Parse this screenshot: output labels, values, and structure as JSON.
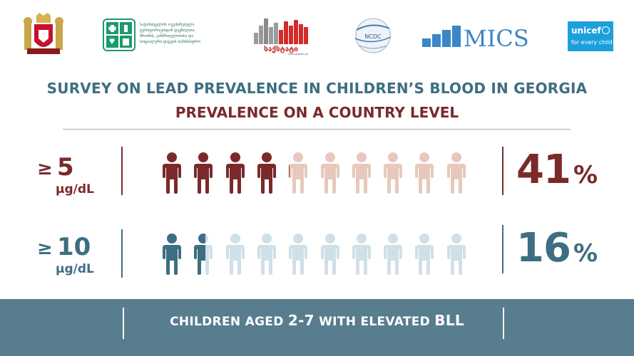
{
  "logos": {
    "ministry_text_lines": [
      "საქართველოს ოკუპირებული",
      "ტერიტორიებიდან დევნილთა,",
      "შრომის, ჯანმრთელობისა და",
      "სოციალური დაცვის სამინისტრო"
    ],
    "geostat_label": "საქსტატი",
    "geostat_url": "www.geostat.ge",
    "ncdc_label": "NCDC",
    "mics_label": "MICS",
    "unicef_label": "unicef",
    "unicef_tagline": "for every child"
  },
  "title": {
    "line1": "SURVEY ON LEAD PREVALENCE IN CHILDREN’S BLOOD IN GEORGIA",
    "line2": "PREVALENCE ON A COUNTRY LEVEL"
  },
  "rows": [
    {
      "threshold_symbol": "≥",
      "threshold_value": "5",
      "unit": "μg/dL",
      "percent_value": "41",
      "percent_symbol": "%",
      "filled_fraction": 0.41,
      "colors": {
        "dark": "#7a2a2a",
        "light": "#e8c8bd"
      }
    },
    {
      "threshold_symbol": "≥",
      "threshold_value": "10",
      "unit": "μg/dL",
      "percent_value": "16",
      "percent_symbol": "%",
      "filled_fraction": 0.16,
      "colors": {
        "dark": "#3e6e82",
        "light": "#cfe0e8"
      }
    }
  ],
  "footer": {
    "prefix": "CHILDREN AGED ",
    "age_range": "2-7",
    "middle": " WITH ELEVATED ",
    "bll": "BLL"
  },
  "colors": {
    "teal": "#3e6e82",
    "maroon": "#7a2a2a",
    "footer_bg": "#587d8f",
    "rule": "#9ab1bd"
  }
}
